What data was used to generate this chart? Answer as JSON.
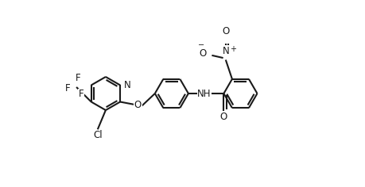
{
  "bg_color": "#ffffff",
  "line_color": "#1a1a1a",
  "line_width": 1.5,
  "figsize": [
    4.6,
    2.36
  ],
  "dpi": 100,
  "xlim": [
    -1.0,
    9.5
  ],
  "ylim": [
    -2.8,
    2.8
  ]
}
